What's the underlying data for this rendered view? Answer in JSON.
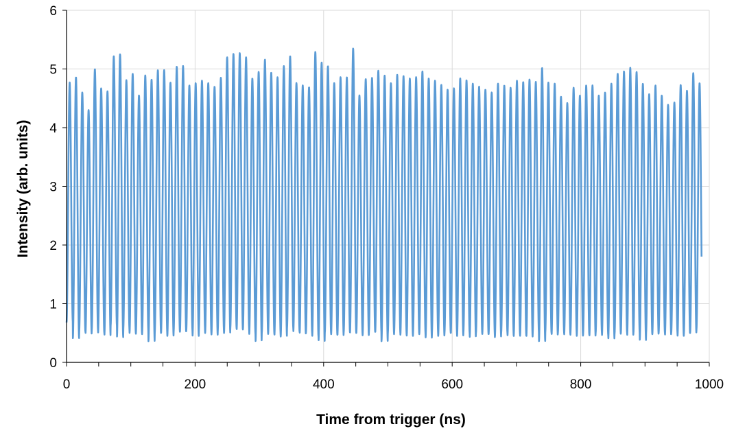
{
  "chart_data": {
    "type": "line",
    "title": "",
    "xlabel": "Time from trigger (ns)",
    "ylabel": "Intensity (arb. units)",
    "xlim": [
      0,
      1000
    ],
    "ylim": [
      0,
      6
    ],
    "xticks": [
      "0",
      "200",
      "400",
      "600",
      "800",
      "1000"
    ],
    "yticks": [
      "0",
      "1",
      "2",
      "3",
      "4",
      "5",
      "6"
    ],
    "xtick_values": [
      0,
      200,
      400,
      600,
      800,
      1000
    ],
    "ytick_values": [
      0,
      1,
      2,
      3,
      4,
      5,
      6
    ],
    "grid": true,
    "legend": "none",
    "series": [
      {
        "color": "#5B9BD5",
        "x_range": [
          0,
          988
        ],
        "period_ns": 9.8,
        "peaks": [
          4.77,
          4.86,
          4.6,
          4.3,
          5.0,
          4.67,
          4.62,
          5.22,
          5.25,
          4.81,
          4.92,
          4.55,
          4.89,
          4.82,
          4.98,
          4.98,
          4.77,
          5.04,
          5.05,
          4.72,
          4.76,
          4.8,
          4.76,
          4.7,
          4.85,
          5.2,
          5.26,
          5.27,
          5.2,
          4.84,
          4.95,
          5.16,
          4.94,
          4.86,
          5.05,
          5.22,
          4.76,
          4.72,
          4.69,
          5.29,
          5.11,
          5.05,
          4.76,
          4.86,
          4.86,
          5.35,
          4.55,
          4.83,
          4.85,
          4.97,
          4.89,
          4.76,
          4.9,
          4.88,
          4.84,
          4.86,
          4.96,
          4.84,
          4.8,
          4.73,
          4.65,
          4.67,
          4.84,
          4.81,
          4.75,
          4.7,
          4.65,
          4.6,
          4.75,
          4.72,
          4.68,
          4.8,
          4.78,
          4.82,
          4.78,
          5.02,
          4.77,
          4.75,
          4.53,
          4.42,
          4.68,
          4.55,
          4.72,
          4.72,
          4.55,
          4.6,
          4.75,
          4.92,
          4.96,
          5.02,
          4.95,
          4.75,
          4.57,
          4.72,
          4.55,
          4.39,
          4.43,
          4.73,
          4.63,
          4.93,
          4.76
        ],
        "troughs": [
          0.68,
          0.41,
          0.52,
          0.48,
          0.55,
          0.5,
          0.45,
          0.62,
          0.43,
          0.55,
          0.5,
          0.48,
          0.52,
          0.36,
          0.5,
          0.49,
          0.45,
          0.52,
          0.51,
          0.53,
          0.45,
          0.55,
          0.5,
          0.47,
          0.53,
          0.5,
          0.58,
          0.55,
          0.56,
          0.48,
          0.35,
          0.5,
          0.48,
          0.46,
          0.44,
          0.58,
          0.52,
          0.48,
          0.5,
          0.44,
          0.35,
          0.5,
          0.47,
          0.45,
          0.51,
          0.5,
          0.49,
          0.46,
          0.52,
          0.5,
          0.36,
          0.48,
          0.5,
          0.47,
          0.45,
          0.49,
          0.48,
          0.42,
          0.49,
          0.45,
          0.5,
          0.49,
          0.45,
          0.5,
          0.42,
          0.5,
          0.48,
          0.47,
          0.43,
          0.5,
          0.45,
          0.48,
          0.45,
          0.44,
          0.5,
          0.36,
          0.5,
          0.46,
          0.5,
          0.47,
          0.5,
          0.45,
          0.47,
          0.44,
          0.5,
          0.46,
          0.39,
          0.48,
          0.5,
          0.45,
          0.5,
          0.38,
          0.48,
          0.48,
          0.5,
          0.46,
          0.5,
          0.45,
          0.48,
          0.5,
          0.55
        ]
      }
    ]
  }
}
